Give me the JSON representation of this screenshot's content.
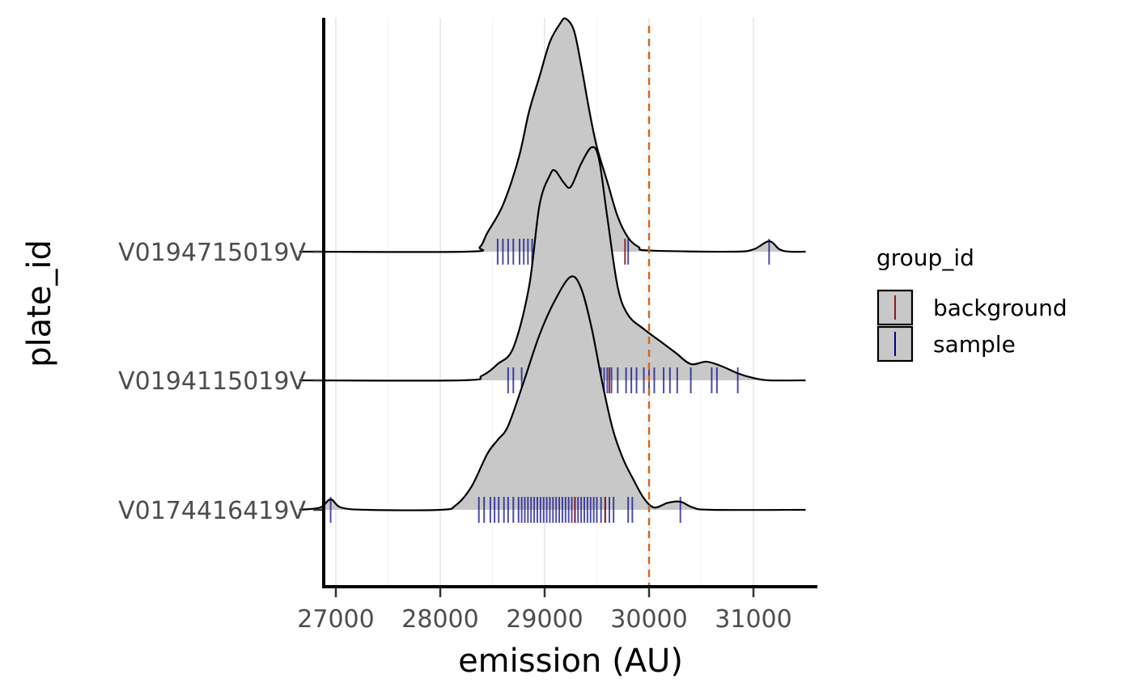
{
  "chart_data": {
    "type": "ridgeline",
    "xlabel": "emission (AU)",
    "ylabel": "plate_id",
    "xlim": [
      26650,
      31500
    ],
    "x_ticks": [
      27000,
      28000,
      29000,
      30000,
      31000
    ],
    "x_tick_labels": [
      "27000",
      "28000",
      "29000",
      "30000",
      "31000"
    ],
    "grid": "vertical major",
    "reference_line": {
      "x": 30000,
      "style": "dashed",
      "color": "#d2691e"
    },
    "fill_color": "#c8c8c8",
    "categories": [
      "V0174416419V",
      "V0194115019V",
      "V0194715019V"
    ],
    "legend": {
      "title": "group_id",
      "position": "right",
      "entries": [
        {
          "label": "background",
          "color": "#8b1a1a"
        },
        {
          "label": "sample",
          "color": "#00008b"
        }
      ]
    },
    "series": [
      {
        "name": "V0174416419V",
        "density": [
          [
            26650,
            0.0
          ],
          [
            26850,
            0.01
          ],
          [
            26950,
            0.045
          ],
          [
            27050,
            0.01
          ],
          [
            27300,
            0.0
          ],
          [
            28000,
            0.0
          ],
          [
            28150,
            0.02
          ],
          [
            28300,
            0.1
          ],
          [
            28450,
            0.24
          ],
          [
            28550,
            0.3
          ],
          [
            28650,
            0.36
          ],
          [
            28800,
            0.55
          ],
          [
            28950,
            0.75
          ],
          [
            29100,
            0.9
          ],
          [
            29250,
            1.0
          ],
          [
            29350,
            0.95
          ],
          [
            29450,
            0.78
          ],
          [
            29550,
            0.55
          ],
          [
            29650,
            0.35
          ],
          [
            29750,
            0.22
          ],
          [
            29850,
            0.13
          ],
          [
            29950,
            0.05
          ],
          [
            30050,
            0.01
          ],
          [
            30180,
            0.03
          ],
          [
            30300,
            0.035
          ],
          [
            30420,
            0.01
          ],
          [
            30600,
            0.0
          ],
          [
            31500,
            0.0
          ]
        ],
        "rug": [
          {
            "x": 26950,
            "group": "sample"
          },
          {
            "x": 28370,
            "group": "sample"
          },
          {
            "x": 28420,
            "group": "sample"
          },
          {
            "x": 28480,
            "group": "sample"
          },
          {
            "x": 28520,
            "group": "sample"
          },
          {
            "x": 28560,
            "group": "sample"
          },
          {
            "x": 28610,
            "group": "sample"
          },
          {
            "x": 28650,
            "group": "sample"
          },
          {
            "x": 28700,
            "group": "sample"
          },
          {
            "x": 28750,
            "group": "sample"
          },
          {
            "x": 28780,
            "group": "sample"
          },
          {
            "x": 28810,
            "group": "sample"
          },
          {
            "x": 28840,
            "group": "sample"
          },
          {
            "x": 28870,
            "group": "sample"
          },
          {
            "x": 28900,
            "group": "sample"
          },
          {
            "x": 28930,
            "group": "sample"
          },
          {
            "x": 28960,
            "group": "sample"
          },
          {
            "x": 28990,
            "group": "sample"
          },
          {
            "x": 29020,
            "group": "sample"
          },
          {
            "x": 29050,
            "group": "sample"
          },
          {
            "x": 29080,
            "group": "sample"
          },
          {
            "x": 29110,
            "group": "sample"
          },
          {
            "x": 29140,
            "group": "sample"
          },
          {
            "x": 29170,
            "group": "sample"
          },
          {
            "x": 29200,
            "group": "sample"
          },
          {
            "x": 29230,
            "group": "sample"
          },
          {
            "x": 29260,
            "group": "sample"
          },
          {
            "x": 29290,
            "group": "sample"
          },
          {
            "x": 29320,
            "group": "sample"
          },
          {
            "x": 29350,
            "group": "sample"
          },
          {
            "x": 29380,
            "group": "sample"
          },
          {
            "x": 29410,
            "group": "sample"
          },
          {
            "x": 29440,
            "group": "sample"
          },
          {
            "x": 29470,
            "group": "sample"
          },
          {
            "x": 29500,
            "group": "sample"
          },
          {
            "x": 29540,
            "group": "sample"
          },
          {
            "x": 29580,
            "group": "sample"
          },
          {
            "x": 29620,
            "group": "sample"
          },
          {
            "x": 29660,
            "group": "sample"
          },
          {
            "x": 29800,
            "group": "sample"
          },
          {
            "x": 29840,
            "group": "sample"
          },
          {
            "x": 30300,
            "group": "sample"
          },
          {
            "x": 29290,
            "group": "background"
          },
          {
            "x": 29580,
            "group": "background"
          }
        ]
      },
      {
        "name": "V0194115019V",
        "density": [
          [
            26650,
            0.0
          ],
          [
            28200,
            0.0
          ],
          [
            28400,
            0.02
          ],
          [
            28550,
            0.07
          ],
          [
            28700,
            0.14
          ],
          [
            28850,
            0.4
          ],
          [
            28950,
            0.75
          ],
          [
            29050,
            0.88
          ],
          [
            29100,
            0.9
          ],
          [
            29180,
            0.85
          ],
          [
            29250,
            0.83
          ],
          [
            29350,
            0.93
          ],
          [
            29450,
            1.0
          ],
          [
            29520,
            0.95
          ],
          [
            29600,
            0.7
          ],
          [
            29700,
            0.4
          ],
          [
            29800,
            0.28
          ],
          [
            29950,
            0.22
          ],
          [
            30100,
            0.17
          ],
          [
            30250,
            0.12
          ],
          [
            30400,
            0.07
          ],
          [
            30550,
            0.08
          ],
          [
            30700,
            0.06
          ],
          [
            30850,
            0.03
          ],
          [
            31000,
            0.01
          ],
          [
            31150,
            0.0
          ],
          [
            31500,
            0.0
          ]
        ],
        "rug": [
          {
            "x": 28650,
            "group": "sample"
          },
          {
            "x": 28700,
            "group": "sample"
          },
          {
            "x": 28780,
            "group": "sample"
          },
          {
            "x": 28900,
            "group": "sample"
          },
          {
            "x": 28950,
            "group": "sample"
          },
          {
            "x": 29000,
            "group": "sample"
          },
          {
            "x": 29050,
            "group": "sample"
          },
          {
            "x": 29080,
            "group": "sample"
          },
          {
            "x": 29120,
            "group": "sample"
          },
          {
            "x": 29150,
            "group": "sample"
          },
          {
            "x": 29200,
            "group": "sample"
          },
          {
            "x": 29250,
            "group": "sample"
          },
          {
            "x": 29300,
            "group": "sample"
          },
          {
            "x": 29330,
            "group": "sample"
          },
          {
            "x": 29360,
            "group": "sample"
          },
          {
            "x": 29390,
            "group": "sample"
          },
          {
            "x": 29420,
            "group": "sample"
          },
          {
            "x": 29450,
            "group": "sample"
          },
          {
            "x": 29480,
            "group": "sample"
          },
          {
            "x": 29510,
            "group": "sample"
          },
          {
            "x": 29540,
            "group": "sample"
          },
          {
            "x": 29570,
            "group": "sample"
          },
          {
            "x": 29600,
            "group": "sample"
          },
          {
            "x": 29640,
            "group": "sample"
          },
          {
            "x": 29700,
            "group": "sample"
          },
          {
            "x": 29780,
            "group": "sample"
          },
          {
            "x": 29830,
            "group": "sample"
          },
          {
            "x": 29880,
            "group": "sample"
          },
          {
            "x": 29950,
            "group": "sample"
          },
          {
            "x": 30000,
            "group": "sample"
          },
          {
            "x": 30050,
            "group": "sample"
          },
          {
            "x": 30140,
            "group": "sample"
          },
          {
            "x": 30200,
            "group": "sample"
          },
          {
            "x": 30270,
            "group": "sample"
          },
          {
            "x": 30400,
            "group": "sample"
          },
          {
            "x": 30600,
            "group": "sample"
          },
          {
            "x": 30650,
            "group": "sample"
          },
          {
            "x": 30850,
            "group": "sample"
          },
          {
            "x": 29620,
            "group": "background"
          }
        ]
      },
      {
        "name": "V0194715019V",
        "density": [
          [
            26650,
            0.0
          ],
          [
            28250,
            0.0
          ],
          [
            28380,
            0.02
          ],
          [
            28450,
            0.08
          ],
          [
            28600,
            0.2
          ],
          [
            28750,
            0.4
          ],
          [
            28850,
            0.6
          ],
          [
            28950,
            0.75
          ],
          [
            29050,
            0.9
          ],
          [
            29150,
            0.98
          ],
          [
            29200,
            1.0
          ],
          [
            29280,
            0.95
          ],
          [
            29350,
            0.8
          ],
          [
            29430,
            0.6
          ],
          [
            29500,
            0.45
          ],
          [
            29600,
            0.3
          ],
          [
            29700,
            0.15
          ],
          [
            29800,
            0.06
          ],
          [
            29900,
            0.02
          ],
          [
            30000,
            0.005
          ],
          [
            30800,
            0.0
          ],
          [
            31000,
            0.01
          ],
          [
            31150,
            0.045
          ],
          [
            31250,
            0.01
          ],
          [
            31350,
            0.0
          ],
          [
            31500,
            0.0
          ]
        ],
        "rug": [
          {
            "x": 28550,
            "group": "sample"
          },
          {
            "x": 28600,
            "group": "sample"
          },
          {
            "x": 28650,
            "group": "sample"
          },
          {
            "x": 28700,
            "group": "sample"
          },
          {
            "x": 28760,
            "group": "sample"
          },
          {
            "x": 28800,
            "group": "sample"
          },
          {
            "x": 28840,
            "group": "sample"
          },
          {
            "x": 28880,
            "group": "sample"
          },
          {
            "x": 28920,
            "group": "sample"
          },
          {
            "x": 28960,
            "group": "sample"
          },
          {
            "x": 29000,
            "group": "sample"
          },
          {
            "x": 29050,
            "group": "sample"
          },
          {
            "x": 29100,
            "group": "sample"
          },
          {
            "x": 29150,
            "group": "sample"
          },
          {
            "x": 29200,
            "group": "sample"
          },
          {
            "x": 29260,
            "group": "sample"
          },
          {
            "x": 29320,
            "group": "sample"
          },
          {
            "x": 29380,
            "group": "sample"
          },
          {
            "x": 29430,
            "group": "sample"
          },
          {
            "x": 29480,
            "group": "sample"
          },
          {
            "x": 29520,
            "group": "sample"
          },
          {
            "x": 29560,
            "group": "sample"
          },
          {
            "x": 29800,
            "group": "sample"
          },
          {
            "x": 31150,
            "group": "sample"
          },
          {
            "x": 29150,
            "group": "background"
          },
          {
            "x": 29770,
            "group": "background"
          }
        ]
      }
    ]
  }
}
